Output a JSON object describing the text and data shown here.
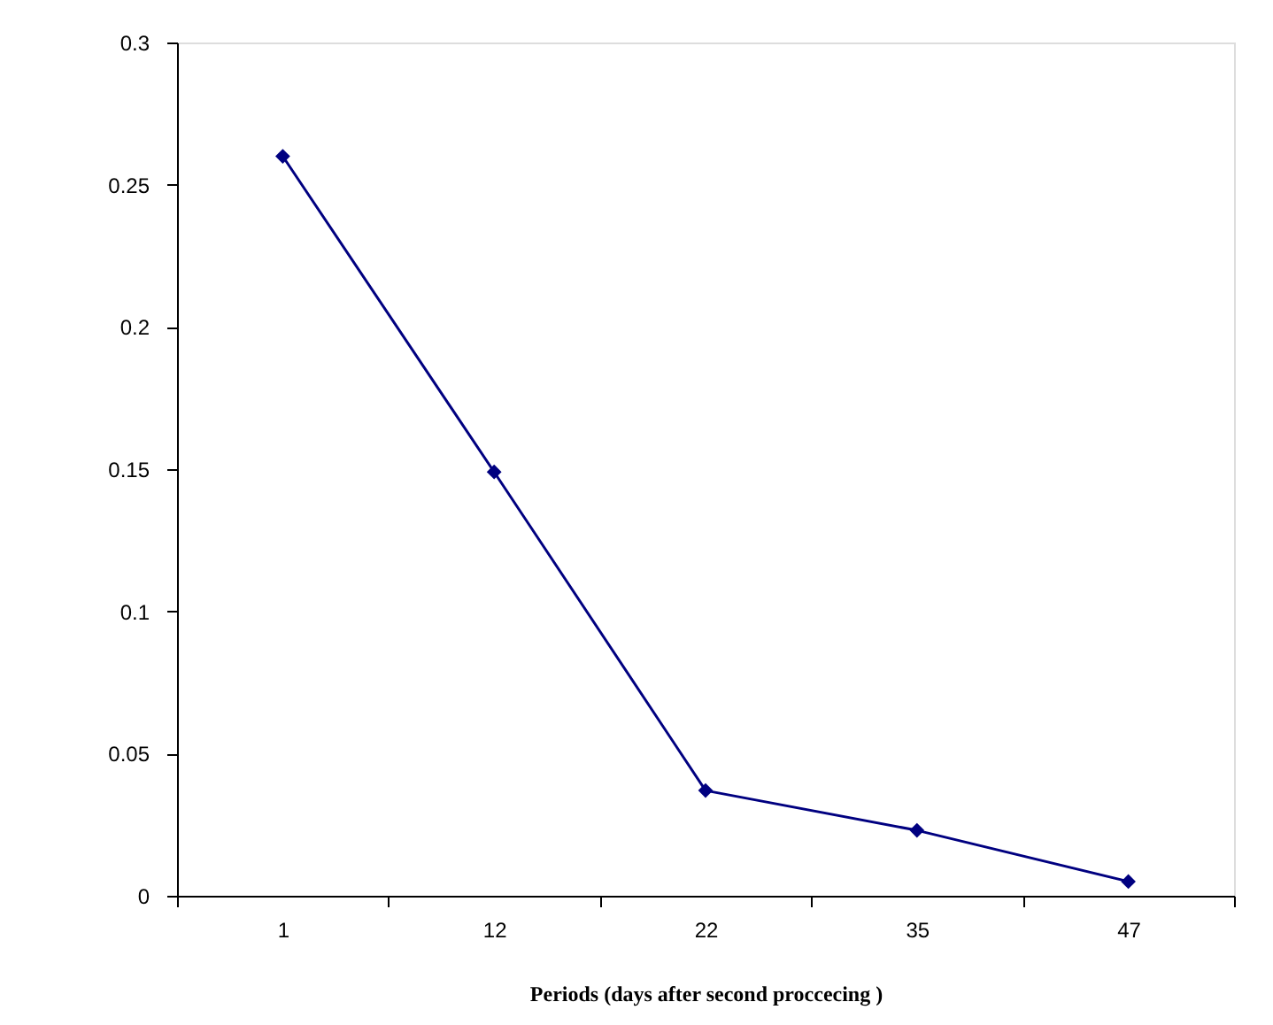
{
  "chart_data": {
    "type": "line",
    "xlabel": "Periods (days after second proccecing )",
    "categories": [
      "1",
      "12",
      "22",
      "35",
      "47"
    ],
    "series": [
      {
        "color": "#000080",
        "values": [
          0.26,
          0.149,
          0.037,
          0.023,
          0.005
        ]
      }
    ],
    "ylim": [
      0,
      0.3
    ],
    "yticks": [
      0,
      0.05,
      0.1,
      0.15,
      0.2,
      0.25,
      0.3
    ],
    "grid": false,
    "legend": false,
    "marker": "diamond",
    "line_style": "solid"
  }
}
